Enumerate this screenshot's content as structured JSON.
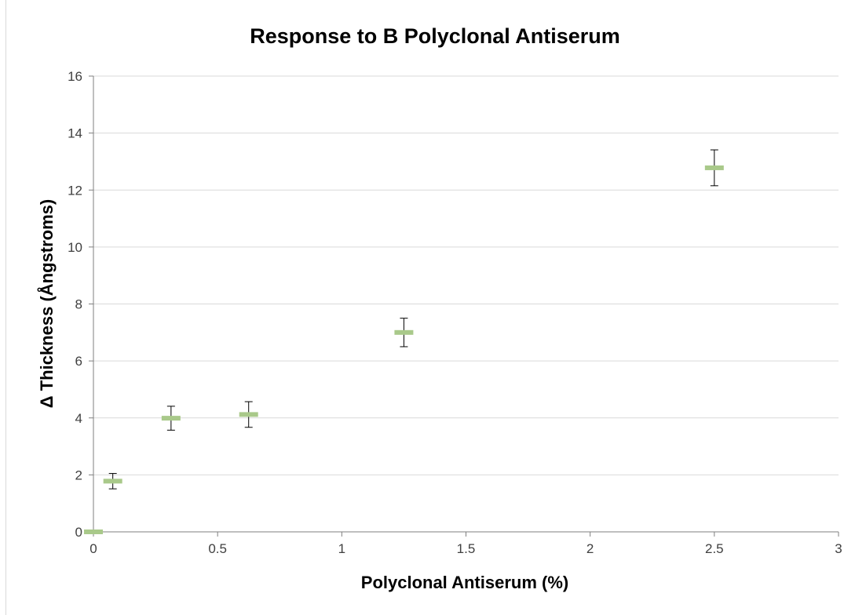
{
  "chart_data": {
    "type": "scatter",
    "title": "Response to B Polyclonal Antiserum",
    "xlabel": "Polyclonal Antiserum (%)",
    "ylabel": "Δ Thickness (Ångstroms)",
    "xlim": [
      0,
      3
    ],
    "ylim": [
      0,
      16
    ],
    "x_ticks": [
      "0",
      "0.5",
      "1",
      "1.5",
      "2",
      "2.5",
      "3"
    ],
    "y_ticks": [
      "0",
      "2",
      "4",
      "6",
      "8",
      "10",
      "12",
      "14",
      "16"
    ],
    "grid": "horizontal",
    "legend": "none",
    "marker": "dash",
    "colors": {
      "marker": "#a9c98a",
      "errorbar": "#000000",
      "grid": "#d9d9d9",
      "axis": "#7f7f7f"
    },
    "series": [
      {
        "points": [
          {
            "x": 0,
            "y": 0,
            "err": 0
          },
          {
            "x": 0.078,
            "y": 1.78,
            "err": 0.27
          },
          {
            "x": 0.3125,
            "y": 3.99,
            "err": 0.42
          },
          {
            "x": 0.625,
            "y": 4.12,
            "err": 0.45
          },
          {
            "x": 1.25,
            "y": 7.0,
            "err": 0.5
          },
          {
            "x": 2.5,
            "y": 12.78,
            "err": 0.63
          }
        ]
      }
    ]
  }
}
